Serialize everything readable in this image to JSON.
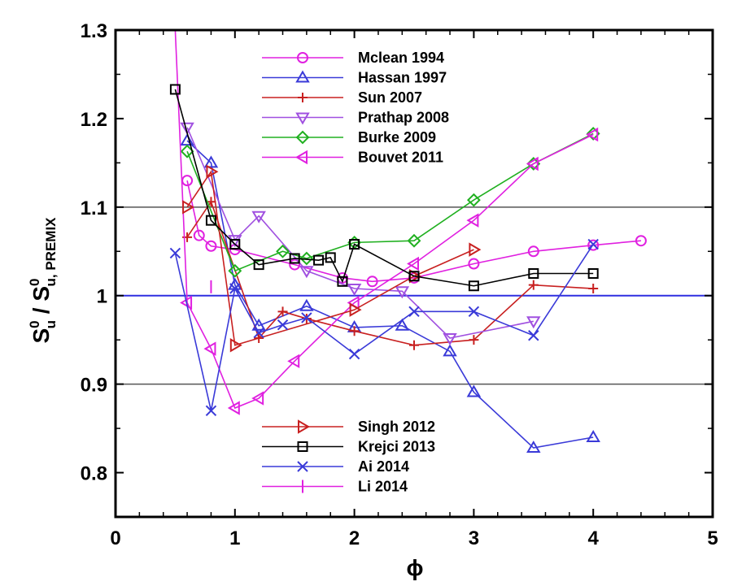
{
  "chart_data": {
    "type": "line",
    "xlabel": "ϕ",
    "ylabel": {
      "main": "S",
      "sup1": "0",
      "sub1": "u",
      "slash": " / S",
      "sup2": "0",
      "sub2": "u, PREMIX"
    },
    "xlim": [
      0,
      5
    ],
    "ylim": [
      0.75,
      1.3
    ],
    "xticks": [
      {
        "v": 0,
        "label": "0"
      },
      {
        "v": 1,
        "label": "1"
      },
      {
        "v": 2,
        "label": "2"
      },
      {
        "v": 3,
        "label": "3"
      },
      {
        "v": 4,
        "label": "4"
      },
      {
        "v": 5,
        "label": "5"
      }
    ],
    "yticks": [
      {
        "v": 0.8,
        "label": "0.8"
      },
      {
        "v": 0.9,
        "label": "0.9"
      },
      {
        "v": 1.0,
        "label": "1"
      },
      {
        "v": 1.1,
        "label": "1.1"
      },
      {
        "v": 1.2,
        "label": "1.2"
      },
      {
        "v": 1.3,
        "label": "1.3"
      }
    ],
    "reference_lines": [
      {
        "y": 1.0,
        "color": "#2f2fe0",
        "width": 2
      },
      {
        "y": 1.1,
        "color": "#555555",
        "width": 1.5
      },
      {
        "y": 0.9,
        "color": "#555555",
        "width": 1.5
      }
    ],
    "legend_groups": [
      {
        "position": "top-center",
        "series": [
          0,
          1,
          2,
          3,
          4,
          5
        ]
      },
      {
        "position": "bottom-center",
        "series": [
          6,
          7,
          8,
          9
        ]
      }
    ],
    "series": [
      {
        "name": "Mclean 1994",
        "color": "#e020e0",
        "marker": "circle",
        "x": [
          0.6,
          0.7,
          0.8,
          1.0,
          1.5,
          1.9,
          2.15,
          2.5,
          3.0,
          3.5,
          4.0,
          4.4
        ],
        "y": [
          1.13,
          1.068,
          1.056,
          1.052,
          1.035,
          1.02,
          1.016,
          1.02,
          1.036,
          1.05,
          1.057,
          1.062
        ]
      },
      {
        "name": "Hassan 1997",
        "color": "#3a3ad8",
        "marker": "triangle-up",
        "x": [
          0.6,
          0.8,
          1.0,
          1.2,
          1.6,
          2.0,
          2.4,
          2.8,
          3.0,
          3.5,
          4.0
        ],
        "y": [
          1.175,
          1.15,
          1.012,
          0.966,
          0.988,
          0.964,
          0.966,
          0.937,
          0.891,
          0.828,
          0.84
        ]
      },
      {
        "name": "Sun 2007",
        "color": "#c82020",
        "marker": "plus",
        "x": [
          0.6,
          0.8,
          1.2,
          1.4,
          1.6,
          2.0,
          2.5,
          3.0,
          3.5,
          4.0
        ],
        "y": [
          1.066,
          1.106,
          0.952,
          0.982,
          0.974,
          0.96,
          0.944,
          0.95,
          1.012,
          1.008
        ]
      },
      {
        "name": "Prathap 2008",
        "color": "#a050e0",
        "marker": "triangle-down",
        "x": [
          0.6,
          1.0,
          1.2,
          1.6,
          2.0,
          2.4,
          2.8,
          3.5
        ],
        "y": [
          1.19,
          1.063,
          1.09,
          1.028,
          1.008,
          1.005,
          0.952,
          0.971
        ]
      },
      {
        "name": "Burke 2009",
        "color": "#20b020",
        "marker": "diamond",
        "x": [
          0.6,
          1.0,
          1.4,
          1.6,
          2.0,
          2.5,
          3.0,
          3.5,
          4.0
        ],
        "y": [
          1.163,
          1.028,
          1.05,
          1.042,
          1.06,
          1.062,
          1.108,
          1.149,
          1.183
        ]
      },
      {
        "name": "Bouvet 2011",
        "color": "#e020e0",
        "marker": "triangle-left",
        "x": [
          0.5,
          0.6,
          0.8,
          1.0,
          1.2,
          1.5,
          2.0,
          2.5,
          3.0,
          3.5,
          4.0
        ],
        "y": [
          1.3,
          0.992,
          0.94,
          0.873,
          0.884,
          0.926,
          0.992,
          1.036,
          1.085,
          1.149,
          1.182
        ]
      },
      {
        "name": "Singh 2012",
        "color": "#c82020",
        "marker": "triangle-right",
        "x": [
          0.6,
          0.8,
          1.0,
          2.0,
          2.5,
          3.0
        ],
        "y": [
          1.1,
          1.14,
          0.944,
          0.984,
          1.022,
          1.052
        ]
      },
      {
        "name": "Krejci 2013",
        "color": "#000000",
        "marker": "square",
        "x": [
          0.5,
          0.8,
          1.0,
          1.2,
          1.5,
          1.7,
          1.8,
          1.9,
          2.0,
          2.5,
          3.0,
          3.5,
          4.0
        ],
        "y": [
          1.233,
          1.085,
          1.058,
          1.035,
          1.042,
          1.04,
          1.043,
          1.016,
          1.058,
          1.022,
          1.011,
          1.025,
          1.025
        ]
      },
      {
        "name": "Ai 2014",
        "color": "#3a3ad8",
        "marker": "x",
        "x": [
          0.5,
          0.8,
          1.0,
          1.2,
          1.4,
          1.6,
          2.0,
          2.5,
          3.0,
          3.5,
          4.0
        ],
        "y": [
          1.048,
          0.87,
          1.008,
          0.958,
          0.967,
          0.975,
          0.934,
          0.982,
          0.982,
          0.955,
          1.058
        ]
      },
      {
        "name": "Li 2014",
        "color": "#e020e0",
        "marker": "vbar",
        "x": [
          0.8
        ],
        "y": [
          1.01
        ]
      }
    ]
  }
}
